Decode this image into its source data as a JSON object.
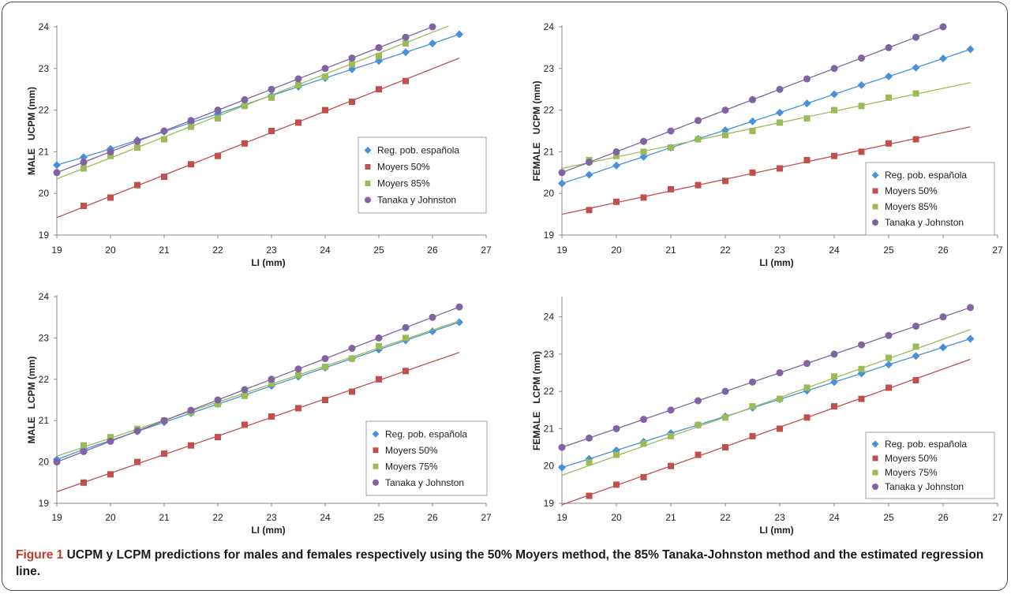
{
  "caption": {
    "label": "Figure 1",
    "text": "UCPM y LCPM predictions for males and females respectively using the 50% Moyers method, the 85% Tanaka-Johnston method and the estimated regression line."
  },
  "colors": {
    "reg": "#4a90d9",
    "moyers50": "#c0504d",
    "moyersHigh": "#9bbb59",
    "tanaka": "#8064a2"
  },
  "chart_data": [
    {
      "type": "line",
      "panel": "top-left",
      "ylabel": "MALE   UCPM (mm)",
      "xlabel": "LI (mm)",
      "xlim": [
        19,
        27
      ],
      "ylim": [
        19,
        24
      ],
      "xticks": [
        "19",
        "20",
        "21",
        "22",
        "23",
        "24",
        "25",
        "26",
        "27"
      ],
      "yticks": [
        "19",
        "20",
        "21",
        "22",
        "23",
        "24"
      ],
      "legend_position": "right-center",
      "series": [
        {
          "name": "Reg. pob. española",
          "marker": "diamond",
          "color_key": "reg",
          "x": [
            19,
            19.5,
            20,
            20.5,
            21,
            21.5,
            22,
            22.5,
            23,
            23.5,
            24,
            24.5,
            25,
            25.5,
            26,
            26.5
          ],
          "y": [
            20.68,
            20.87,
            21.07,
            21.28,
            21.48,
            21.7,
            21.91,
            22.13,
            22.35,
            22.56,
            22.77,
            22.98,
            23.18,
            23.39,
            23.6,
            23.82
          ]
        },
        {
          "name": "Moyers 50%",
          "marker": "square",
          "color_key": "moyers50",
          "x": [
            19.5,
            20,
            20.5,
            21,
            21.5,
            22,
            22.5,
            23,
            23.5,
            24,
            24.5,
            25,
            25.5
          ],
          "y": [
            19.7,
            19.9,
            20.2,
            20.4,
            20.7,
            20.9,
            21.2,
            21.5,
            21.7,
            22.0,
            22.2,
            22.5,
            22.7
          ],
          "trend": [
            [
              19,
              19.42
            ],
            [
              26.5,
              23.25
            ]
          ]
        },
        {
          "name": "Moyers 85%",
          "marker": "square",
          "color_key": "moyersHigh",
          "x": [
            19.5,
            20,
            20.5,
            21,
            21.5,
            22,
            22.5,
            23,
            23.5,
            24,
            24.5,
            25,
            25.5
          ],
          "y": [
            20.6,
            20.9,
            21.1,
            21.3,
            21.6,
            21.8,
            22.1,
            22.3,
            22.6,
            22.8,
            23.1,
            23.3,
            23.6
          ],
          "trend": [
            [
              19,
              20.35
            ],
            [
              26.3,
              24.02
            ]
          ]
        },
        {
          "name": "Tanaka y Johnston",
          "marker": "circle",
          "color_key": "tanaka",
          "x": [
            19,
            19.5,
            20,
            20.5,
            21,
            21.5,
            22,
            22.5,
            23,
            23.5,
            24,
            24.5,
            25,
            25.5,
            26
          ],
          "y": [
            20.5,
            20.75,
            21.0,
            21.25,
            21.5,
            21.75,
            22.0,
            22.25,
            22.5,
            22.75,
            23.0,
            23.25,
            23.5,
            23.75,
            24.0
          ]
        }
      ]
    },
    {
      "type": "line",
      "panel": "top-right",
      "ylabel": "FEMALE   UCPM (mm)",
      "xlabel": "LI (mm)",
      "xlim": [
        19,
        27
      ],
      "ylim": [
        19,
        24
      ],
      "xticks": [
        "19",
        "20",
        "21",
        "22",
        "23",
        "24",
        "25",
        "26",
        "27"
      ],
      "yticks": [
        "19",
        "20",
        "21",
        "22",
        "23",
        "24"
      ],
      "legend_position": "right-center",
      "series": [
        {
          "name": "Reg. pob. española",
          "marker": "diamond",
          "color_key": "reg",
          "x": [
            19,
            19.5,
            20,
            20.5,
            21,
            21.5,
            22,
            22.5,
            23,
            23.5,
            24,
            24.5,
            25,
            25.5,
            26,
            26.5
          ],
          "y": [
            20.24,
            20.45,
            20.67,
            20.88,
            21.1,
            21.31,
            21.52,
            21.73,
            21.94,
            22.16,
            22.38,
            22.6,
            22.81,
            23.02,
            23.24,
            23.46
          ]
        },
        {
          "name": "Moyers 50%",
          "marker": "square",
          "color_key": "moyers50",
          "x": [
            19.5,
            20,
            20.5,
            21,
            21.5,
            22,
            22.5,
            23,
            23.5,
            24,
            24.5,
            25,
            25.5
          ],
          "y": [
            19.6,
            19.8,
            19.9,
            20.1,
            20.2,
            20.3,
            20.5,
            20.6,
            20.8,
            20.9,
            21.0,
            21.2,
            21.3
          ],
          "trend": [
            [
              19,
              19.5
            ],
            [
              26.5,
              21.6
            ]
          ]
        },
        {
          "name": "Moyers 85%",
          "marker": "square",
          "color_key": "moyersHigh",
          "x": [
            19.5,
            20,
            20.5,
            21,
            21.5,
            22,
            22.5,
            23,
            23.5,
            24,
            24.5,
            25,
            25.5
          ],
          "y": [
            20.8,
            20.9,
            21.0,
            21.1,
            21.3,
            21.4,
            21.5,
            21.7,
            21.8,
            22.0,
            22.1,
            22.3,
            22.4
          ],
          "trend": [
            [
              19,
              20.6
            ],
            [
              26.5,
              22.66
            ]
          ]
        },
        {
          "name": "Tanaka y Johnston",
          "marker": "circle",
          "color_key": "tanaka",
          "x": [
            19,
            19.5,
            20,
            20.5,
            21,
            21.5,
            22,
            22.5,
            23,
            23.5,
            24,
            24.5,
            25,
            25.5,
            26
          ],
          "y": [
            20.5,
            20.75,
            21.0,
            21.25,
            21.5,
            21.75,
            22.0,
            22.25,
            22.5,
            22.75,
            23.0,
            23.25,
            23.5,
            23.75,
            24.0
          ]
        }
      ]
    },
    {
      "type": "line",
      "panel": "bottom-left",
      "ylabel": "MALE   LCPM (mm)",
      "xlabel": "LI (mm)",
      "xlim": [
        19,
        27
      ],
      "ylim": [
        19,
        24
      ],
      "xticks": [
        "19",
        "20",
        "21",
        "22",
        "23",
        "24",
        "25",
        "26",
        "27"
      ],
      "yticks": [
        "19",
        "20",
        "21",
        "22",
        "23",
        "24"
      ],
      "legend_position": "bottom-right",
      "series": [
        {
          "name": "Reg. pob. española",
          "marker": "diamond",
          "color_key": "reg",
          "x": [
            19,
            19.5,
            20,
            20.5,
            21,
            21.5,
            22,
            22.5,
            23,
            23.5,
            24,
            24.5,
            25,
            25.5,
            26,
            26.5
          ],
          "y": [
            20.06,
            20.3,
            20.52,
            20.74,
            20.96,
            21.18,
            21.4,
            21.62,
            21.84,
            22.06,
            22.28,
            22.5,
            22.72,
            22.94,
            23.16,
            23.38
          ]
        },
        {
          "name": "Moyers 50%",
          "marker": "square",
          "color_key": "moyers50",
          "x": [
            19.5,
            20,
            20.5,
            21,
            21.5,
            22,
            22.5,
            23,
            23.5,
            24,
            24.5,
            25,
            25.5
          ],
          "y": [
            19.5,
            19.7,
            20.0,
            20.2,
            20.4,
            20.6,
            20.9,
            21.1,
            21.3,
            21.5,
            21.7,
            22.0,
            22.2
          ],
          "trend": [
            [
              19,
              19.28
            ],
            [
              26.5,
              22.65
            ]
          ]
        },
        {
          "name": "Moyers 75%",
          "marker": "square",
          "color_key": "moyersHigh",
          "x": [
            19.5,
            20,
            20.5,
            21,
            21.5,
            22,
            22.5,
            23,
            23.5,
            24,
            24.5,
            25,
            25.5
          ],
          "y": [
            20.4,
            20.6,
            20.8,
            21.0,
            21.2,
            21.4,
            21.6,
            21.9,
            22.1,
            22.3,
            22.5,
            22.8,
            23.0
          ],
          "trend": [
            [
              19,
              20.14
            ],
            [
              26.5,
              23.41
            ]
          ]
        },
        {
          "name": "Tanaka y Johnston",
          "marker": "circle",
          "color_key": "tanaka",
          "x": [
            19,
            19.5,
            20,
            20.5,
            21,
            21.5,
            22,
            22.5,
            23,
            23.5,
            24,
            24.5,
            25,
            25.5,
            26,
            26.5
          ],
          "y": [
            20.0,
            20.25,
            20.5,
            20.75,
            21.0,
            21.25,
            21.5,
            21.75,
            22.0,
            22.25,
            22.5,
            22.75,
            23.0,
            23.25,
            23.5,
            23.75
          ]
        }
      ]
    },
    {
      "type": "line",
      "panel": "bottom-right",
      "ylabel": "FEMALE   LCPM (mm)",
      "xlabel": "LI (mm)",
      "xlim": [
        19,
        27
      ],
      "ylim": [
        19,
        24.5
      ],
      "xticks": [
        "19",
        "20",
        "21",
        "22",
        "23",
        "24",
        "25",
        "26",
        "27"
      ],
      "yticks": [
        "19",
        "20",
        "21",
        "22",
        "23",
        "24"
      ],
      "legend_position": "bottom-right",
      "series": [
        {
          "name": "Reg. pob. española",
          "marker": "diamond",
          "color_key": "reg",
          "x": [
            19,
            19.5,
            20,
            20.5,
            21,
            21.5,
            22,
            22.5,
            23,
            23.5,
            24,
            24.5,
            25,
            25.5,
            26,
            26.5
          ],
          "y": [
            19.96,
            20.19,
            20.42,
            20.65,
            20.88,
            21.1,
            21.33,
            21.56,
            21.79,
            22.02,
            22.25,
            22.48,
            22.72,
            22.95,
            23.18,
            23.41
          ]
        },
        {
          "name": "Moyers 50%",
          "marker": "square",
          "color_key": "moyers50",
          "x": [
            19.5,
            20,
            20.5,
            21,
            21.5,
            22,
            22.5,
            23,
            23.5,
            24,
            24.5,
            25,
            25.5
          ],
          "y": [
            19.2,
            19.5,
            19.7,
            20.0,
            20.3,
            20.5,
            20.8,
            21.0,
            21.3,
            21.6,
            21.8,
            22.1,
            22.3
          ],
          "trend": [
            [
              19,
              18.96
            ],
            [
              26.5,
              22.86
            ]
          ]
        },
        {
          "name": "Moyers 75%",
          "marker": "square",
          "color_key": "moyersHigh",
          "x": [
            19.5,
            20,
            20.5,
            21,
            21.5,
            22,
            22.5,
            23,
            23.5,
            24,
            24.5,
            25,
            25.5
          ],
          "y": [
            20.1,
            20.3,
            20.6,
            20.8,
            21.1,
            21.3,
            21.6,
            21.8,
            22.1,
            22.4,
            22.6,
            22.9,
            23.2
          ],
          "trend": [
            [
              19,
              19.75
            ],
            [
              26.5,
              23.66
            ]
          ]
        },
        {
          "name": "Tanaka y Johnston",
          "marker": "circle",
          "color_key": "tanaka",
          "x": [
            19,
            19.5,
            20,
            20.5,
            21,
            21.5,
            22,
            22.5,
            23,
            23.5,
            24,
            24.5,
            25,
            25.5,
            26,
            26.5
          ],
          "y": [
            20.5,
            20.75,
            21.0,
            21.25,
            21.5,
            21.75,
            22.0,
            22.25,
            22.5,
            22.75,
            23.0,
            23.25,
            23.5,
            23.75,
            24.0,
            24.25
          ]
        }
      ]
    }
  ]
}
